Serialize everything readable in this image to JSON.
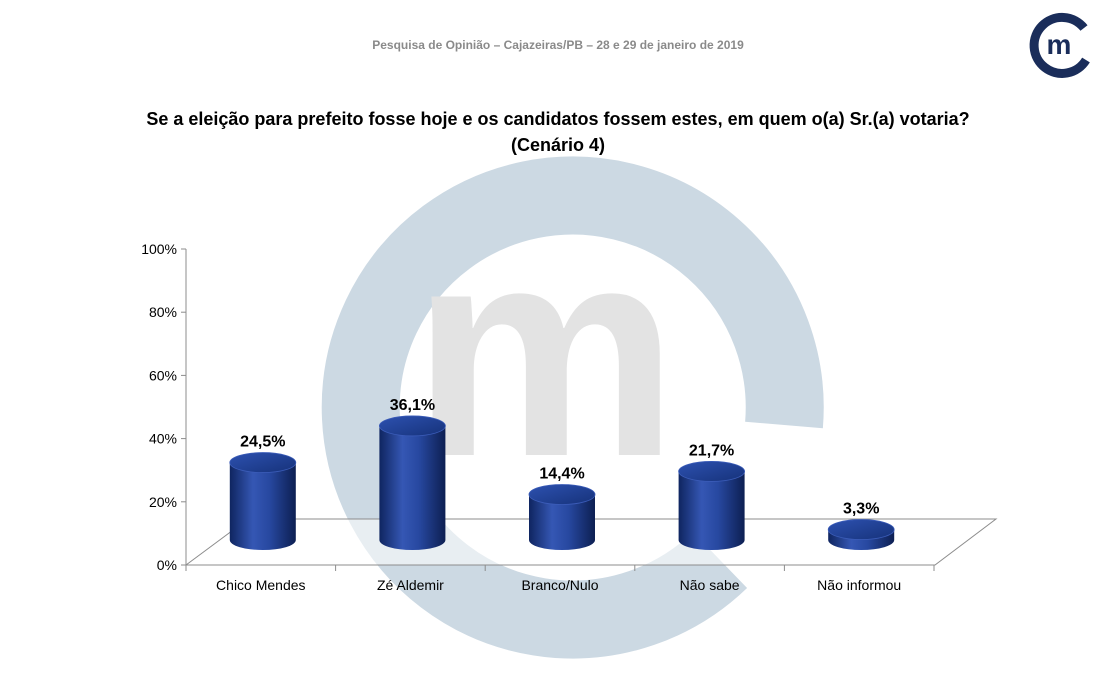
{
  "header": {
    "text": "Pesquisa de Opinião – Cajazeiras/PB – 28 e 29 de janeiro de 2019",
    "logo_icon": "m-logo-icon",
    "logo_letter": "m",
    "brand_color": "#1a2d5a",
    "accent_color": "#4a86c5"
  },
  "chart_data": {
    "type": "bar",
    "title": "Se a eleição para prefeito fosse hoje e os candidatos fossem estes, em quem o(a) Sr.(a) votaria?",
    "subtitle": "(Cenário 4)",
    "categories": [
      "Chico Mendes",
      "Zé Aldemir",
      "Branco/Nulo",
      "Não sabe",
      "Não informou"
    ],
    "values": [
      24.5,
      36.1,
      14.4,
      21.7,
      3.3
    ],
    "data_labels": [
      "24,5%",
      "36,1%",
      "14,4%",
      "21,7%",
      "3,3%"
    ],
    "yticks": [
      0,
      20,
      40,
      60,
      80,
      100
    ],
    "ytick_labels": [
      "0%",
      "20%",
      "40%",
      "60%",
      "80%",
      "100%"
    ],
    "ylim": [
      0,
      100
    ],
    "xlabel": "",
    "ylabel": "",
    "bar_color": "#1f3f8f",
    "watermark_color": "#ccd9e3"
  }
}
